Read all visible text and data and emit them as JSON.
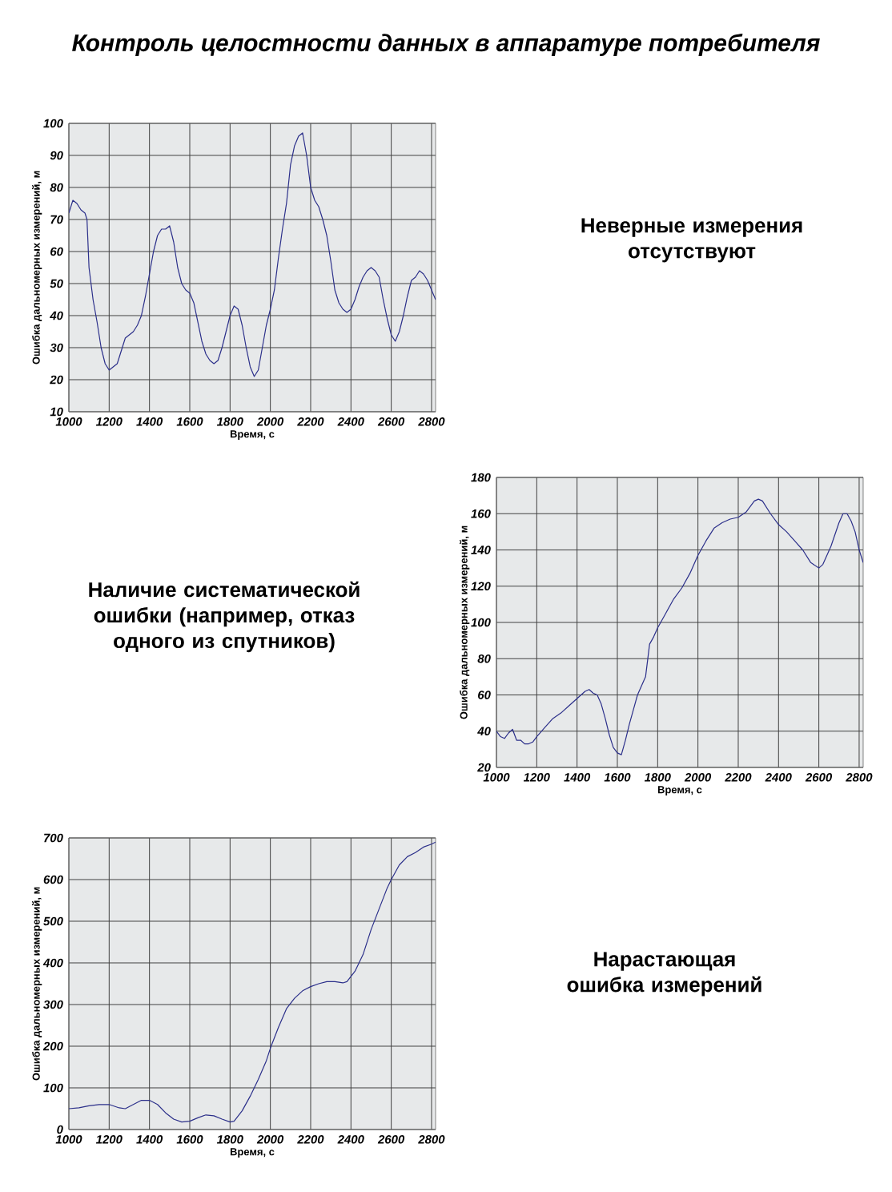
{
  "chart_data": [
    {
      "type": "line",
      "title": "Контроль целостности данных в аппаратуре потребителя",
      "xlabel": "Время, с",
      "ylabel": "Ошибка дальномерных измерений, м",
      "annotations": [
        "Неверные измерения отсутствуют"
      ],
      "xlim": [
        1000,
        2820
      ],
      "xticks": [
        1000,
        1200,
        1400,
        1600,
        1800,
        2000,
        2200,
        2400,
        2600,
        2800
      ],
      "ylim": [
        10,
        100
      ],
      "yticks": [
        10,
        20,
        30,
        40,
        50,
        60,
        70,
        80,
        90,
        100
      ],
      "grid": true,
      "series": [
        {
          "color": "#2b2f8a",
          "x": [
            1000,
            1020,
            1040,
            1060,
            1080,
            1090,
            1100,
            1120,
            1140,
            1160,
            1180,
            1200,
            1220,
            1240,
            1260,
            1280,
            1300,
            1320,
            1340,
            1360,
            1380,
            1400,
            1420,
            1440,
            1460,
            1480,
            1500,
            1520,
            1540,
            1560,
            1580,
            1600,
            1620,
            1640,
            1660,
            1680,
            1700,
            1720,
            1740,
            1760,
            1780,
            1800,
            1820,
            1840,
            1860,
            1880,
            1900,
            1920,
            1940,
            1960,
            1980,
            2000,
            2020,
            2040,
            2060,
            2080,
            2100,
            2120,
            2140,
            2160,
            2180,
            2200,
            2220,
            2240,
            2260,
            2280,
            2300,
            2320,
            2340,
            2360,
            2380,
            2400,
            2420,
            2440,
            2460,
            2480,
            2500,
            2520,
            2540,
            2560,
            2580,
            2600,
            2620,
            2640,
            2660,
            2680,
            2700,
            2720,
            2740,
            2760,
            2780,
            2800,
            2820
          ],
          "values": [
            72,
            76,
            75,
            73,
            72,
            70,
            55,
            45,
            38,
            30,
            25,
            23,
            24,
            25,
            29,
            33,
            34,
            35,
            37,
            40,
            46,
            53,
            60,
            65,
            67,
            67,
            68,
            63,
            55,
            50,
            48,
            47,
            44,
            38,
            32,
            28,
            26,
            25,
            26,
            30,
            35,
            40,
            43,
            42,
            37,
            30,
            24,
            21,
            23,
            30,
            37,
            42,
            48,
            58,
            67,
            75,
            87,
            93,
            96,
            97,
            90,
            80,
            76,
            74,
            70,
            65,
            57,
            48,
            44,
            42,
            41,
            42,
            45,
            49,
            52,
            54,
            55,
            54,
            52,
            45,
            39,
            34,
            32,
            35,
            40,
            46,
            51,
            52,
            54,
            53,
            51,
            48,
            45
          ]
        }
      ]
    },
    {
      "type": "line",
      "xlabel": "Время, с",
      "ylabel": "Ошибка дальномерных измерений, м",
      "annotations": [
        "Наличие систематической ошибки (например, отказ одного из спутников)"
      ],
      "xlim": [
        1000,
        2820
      ],
      "xticks": [
        1000,
        1200,
        1400,
        1600,
        1800,
        2000,
        2200,
        2400,
        2600,
        2800
      ],
      "ylim": [
        20,
        180
      ],
      "yticks": [
        20,
        40,
        60,
        80,
        100,
        120,
        140,
        160,
        180
      ],
      "grid": true,
      "series": [
        {
          "color": "#2b2f8a",
          "x": [
            1000,
            1020,
            1040,
            1060,
            1080,
            1100,
            1120,
            1140,
            1160,
            1180,
            1200,
            1240,
            1280,
            1320,
            1360,
            1400,
            1440,
            1460,
            1480,
            1500,
            1520,
            1540,
            1560,
            1580,
            1600,
            1620,
            1640,
            1660,
            1680,
            1700,
            1720,
            1740,
            1760,
            1780,
            1800,
            1840,
            1880,
            1920,
            1960,
            2000,
            2040,
            2080,
            2120,
            2160,
            2200,
            2240,
            2280,
            2300,
            2320,
            2360,
            2400,
            2440,
            2480,
            2520,
            2560,
            2600,
            2620,
            2660,
            2700,
            2720,
            2740,
            2760,
            2780,
            2800,
            2820
          ],
          "values": [
            40,
            37,
            36,
            39,
            41,
            35,
            35,
            33,
            33,
            34,
            37,
            42,
            47,
            50,
            54,
            58,
            62,
            63,
            61,
            60,
            55,
            47,
            38,
            31,
            28,
            27,
            35,
            44,
            52,
            60,
            65,
            70,
            88,
            92,
            97,
            105,
            113,
            119,
            127,
            137,
            145,
            152,
            155,
            157,
            158,
            161,
            167,
            168,
            167,
            160,
            154,
            150,
            145,
            140,
            133,
            130,
            132,
            142,
            155,
            160,
            160,
            156,
            150,
            140,
            133
          ]
        }
      ]
    },
    {
      "type": "line",
      "xlabel": "Время, с",
      "ylabel": "Ошибка дальномерных измерений, м",
      "annotations": [
        "Нарастающая ошибка измерений"
      ],
      "xlim": [
        1000,
        2820
      ],
      "xticks": [
        1000,
        1200,
        1400,
        1600,
        1800,
        2000,
        2200,
        2400,
        2600,
        2800
      ],
      "ylim": [
        0,
        700
      ],
      "yticks": [
        0,
        100,
        200,
        300,
        400,
        500,
        600,
        700
      ],
      "grid": true,
      "series": [
        {
          "color": "#2b2f8a",
          "x": [
            1000,
            1050,
            1100,
            1150,
            1200,
            1250,
            1280,
            1320,
            1360,
            1400,
            1440,
            1480,
            1520,
            1560,
            1600,
            1640,
            1680,
            1720,
            1760,
            1800,
            1820,
            1860,
            1900,
            1940,
            1980,
            2000,
            2040,
            2080,
            2120,
            2160,
            2200,
            2240,
            2280,
            2320,
            2360,
            2380,
            2420,
            2460,
            2500,
            2540,
            2580,
            2600,
            2640,
            2680,
            2720,
            2760,
            2800,
            2820
          ],
          "values": [
            50,
            52,
            57,
            60,
            60,
            52,
            50,
            60,
            70,
            70,
            60,
            40,
            25,
            18,
            20,
            28,
            35,
            33,
            25,
            18,
            20,
            45,
            80,
            120,
            165,
            195,
            245,
            290,
            315,
            333,
            343,
            350,
            355,
            355,
            352,
            355,
            380,
            420,
            480,
            530,
            580,
            600,
            635,
            655,
            665,
            678,
            685,
            690
          ]
        }
      ]
    }
  ]
}
